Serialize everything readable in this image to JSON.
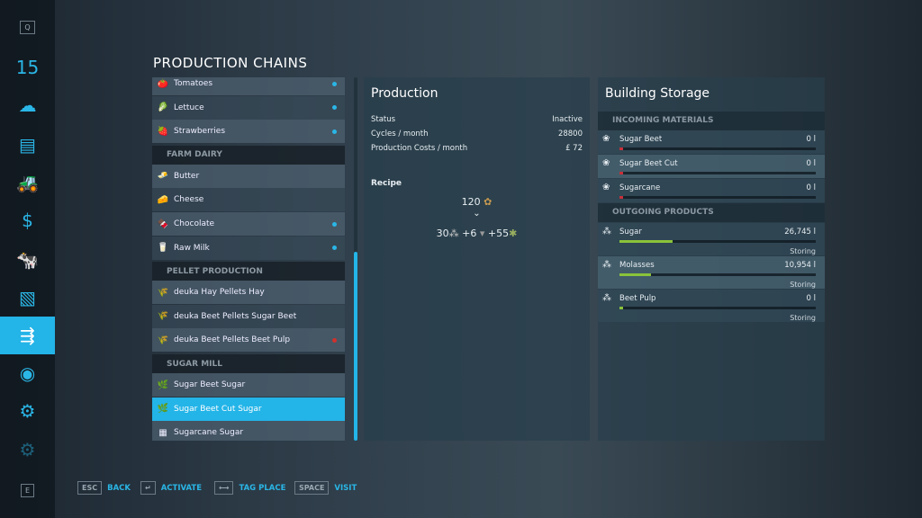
{
  "sidebar": {
    "top_key": "Q",
    "bottom_key": "E",
    "items": [
      {
        "icon": "calendar-icon",
        "glyph": "15"
      },
      {
        "icon": "weather-icon",
        "glyph": "☁"
      },
      {
        "icon": "stats-icon",
        "glyph": "▤"
      },
      {
        "icon": "vehicles-icon",
        "glyph": "🚜"
      },
      {
        "icon": "finances-icon",
        "glyph": "$"
      },
      {
        "icon": "animals-icon",
        "glyph": "🐄"
      },
      {
        "icon": "contracts-icon",
        "glyph": "▧"
      },
      {
        "icon": "production-icon",
        "glyph": "⇶",
        "active": true
      },
      {
        "icon": "help-icon",
        "glyph": "◉"
      },
      {
        "icon": "garage-icon",
        "glyph": "⚙"
      },
      {
        "icon": "settings-icon",
        "glyph": "⚙"
      }
    ]
  },
  "title": "PRODUCTION CHAINS",
  "list": [
    {
      "type": "item",
      "label": "Tomatoes",
      "icon": "🍅",
      "dot": "#2ab6e6"
    },
    {
      "type": "item",
      "label": "Lettuce",
      "icon": "🥬",
      "dot": "#2ab6e6"
    },
    {
      "type": "item",
      "label": "Strawberries",
      "icon": "🍓",
      "dot": "#2ab6e6"
    },
    {
      "type": "header",
      "label": "FARM DAIRY"
    },
    {
      "type": "item",
      "label": "Butter",
      "icon": "🧈"
    },
    {
      "type": "item",
      "label": "Cheese",
      "icon": "🧀"
    },
    {
      "type": "item",
      "label": "Chocolate",
      "icon": "🍫",
      "dot": "#2ab6e6"
    },
    {
      "type": "item",
      "label": "Raw Milk",
      "icon": "🥛",
      "dot": "#2ab6e6"
    },
    {
      "type": "header",
      "label": "PELLET PRODUCTION"
    },
    {
      "type": "item",
      "label": "deuka Hay Pellets Hay",
      "icon": "🌾"
    },
    {
      "type": "item",
      "label": "deuka Beet Pellets Sugar Beet",
      "icon": "🌾"
    },
    {
      "type": "item",
      "label": "deuka Beet Pellets Beet Pulp",
      "icon": "🌾",
      "dot": "#d0302c"
    },
    {
      "type": "header",
      "label": "SUGAR MILL"
    },
    {
      "type": "item",
      "label": "Sugar Beet Sugar",
      "icon": "🌿"
    },
    {
      "type": "item",
      "label": "Sugar Beet Cut Sugar",
      "icon": "🌿",
      "selected": true
    },
    {
      "type": "item",
      "label": "Sugarcane Sugar",
      "icon": "▦"
    }
  ],
  "production": {
    "title": "Production",
    "rows": [
      {
        "k": "Status",
        "v": "Inactive"
      },
      {
        "k": "Cycles / month",
        "v": "28800"
      },
      {
        "k": "Production Costs / month",
        "v": "£ 72"
      }
    ],
    "recipe_label": "Recipe",
    "input": "120",
    "output": [
      "30",
      "+6",
      "+55"
    ]
  },
  "storage": {
    "title": "Building Storage",
    "incoming_label": "INCOMING MATERIALS",
    "outgoing_label": "OUTGOING PRODUCTS",
    "incoming": [
      {
        "name": "Sugar Beet",
        "value": "0 l",
        "fill": 0
      },
      {
        "name": "Sugar Beet Cut",
        "value": "0 l",
        "fill": 0
      },
      {
        "name": "Sugarcane",
        "value": "0 l",
        "fill": 0
      }
    ],
    "outgoing": [
      {
        "name": "Sugar",
        "value": "26,745 l",
        "fill": 0.27,
        "status": "Storing"
      },
      {
        "name": "Molasses",
        "value": "10,954 l",
        "fill": 0.16,
        "status": "Storing"
      },
      {
        "name": "Beet Pulp",
        "value": "0 l",
        "fill": 0.01,
        "status": "Storing"
      }
    ]
  },
  "footer": [
    {
      "key": "ESC",
      "label": "BACK"
    },
    {
      "key": "↵",
      "label": "ACTIVATE"
    },
    {
      "key": "⟷",
      "label": "TAG PLACE"
    },
    {
      "key": "SPACE",
      "label": "VISIT"
    }
  ]
}
